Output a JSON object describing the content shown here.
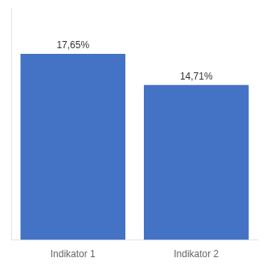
{
  "chart_data": {
    "type": "bar",
    "categories": [
      "Indikator 1",
      "Indikator 2"
    ],
    "values": [
      17.65,
      14.71
    ],
    "value_labels": [
      "17,65%",
      "14,71%"
    ],
    "color": "#4472C4",
    "ylim": [
      0,
      22
    ],
    "data_labels": true,
    "tick_labels": "x",
    "grid": false
  }
}
